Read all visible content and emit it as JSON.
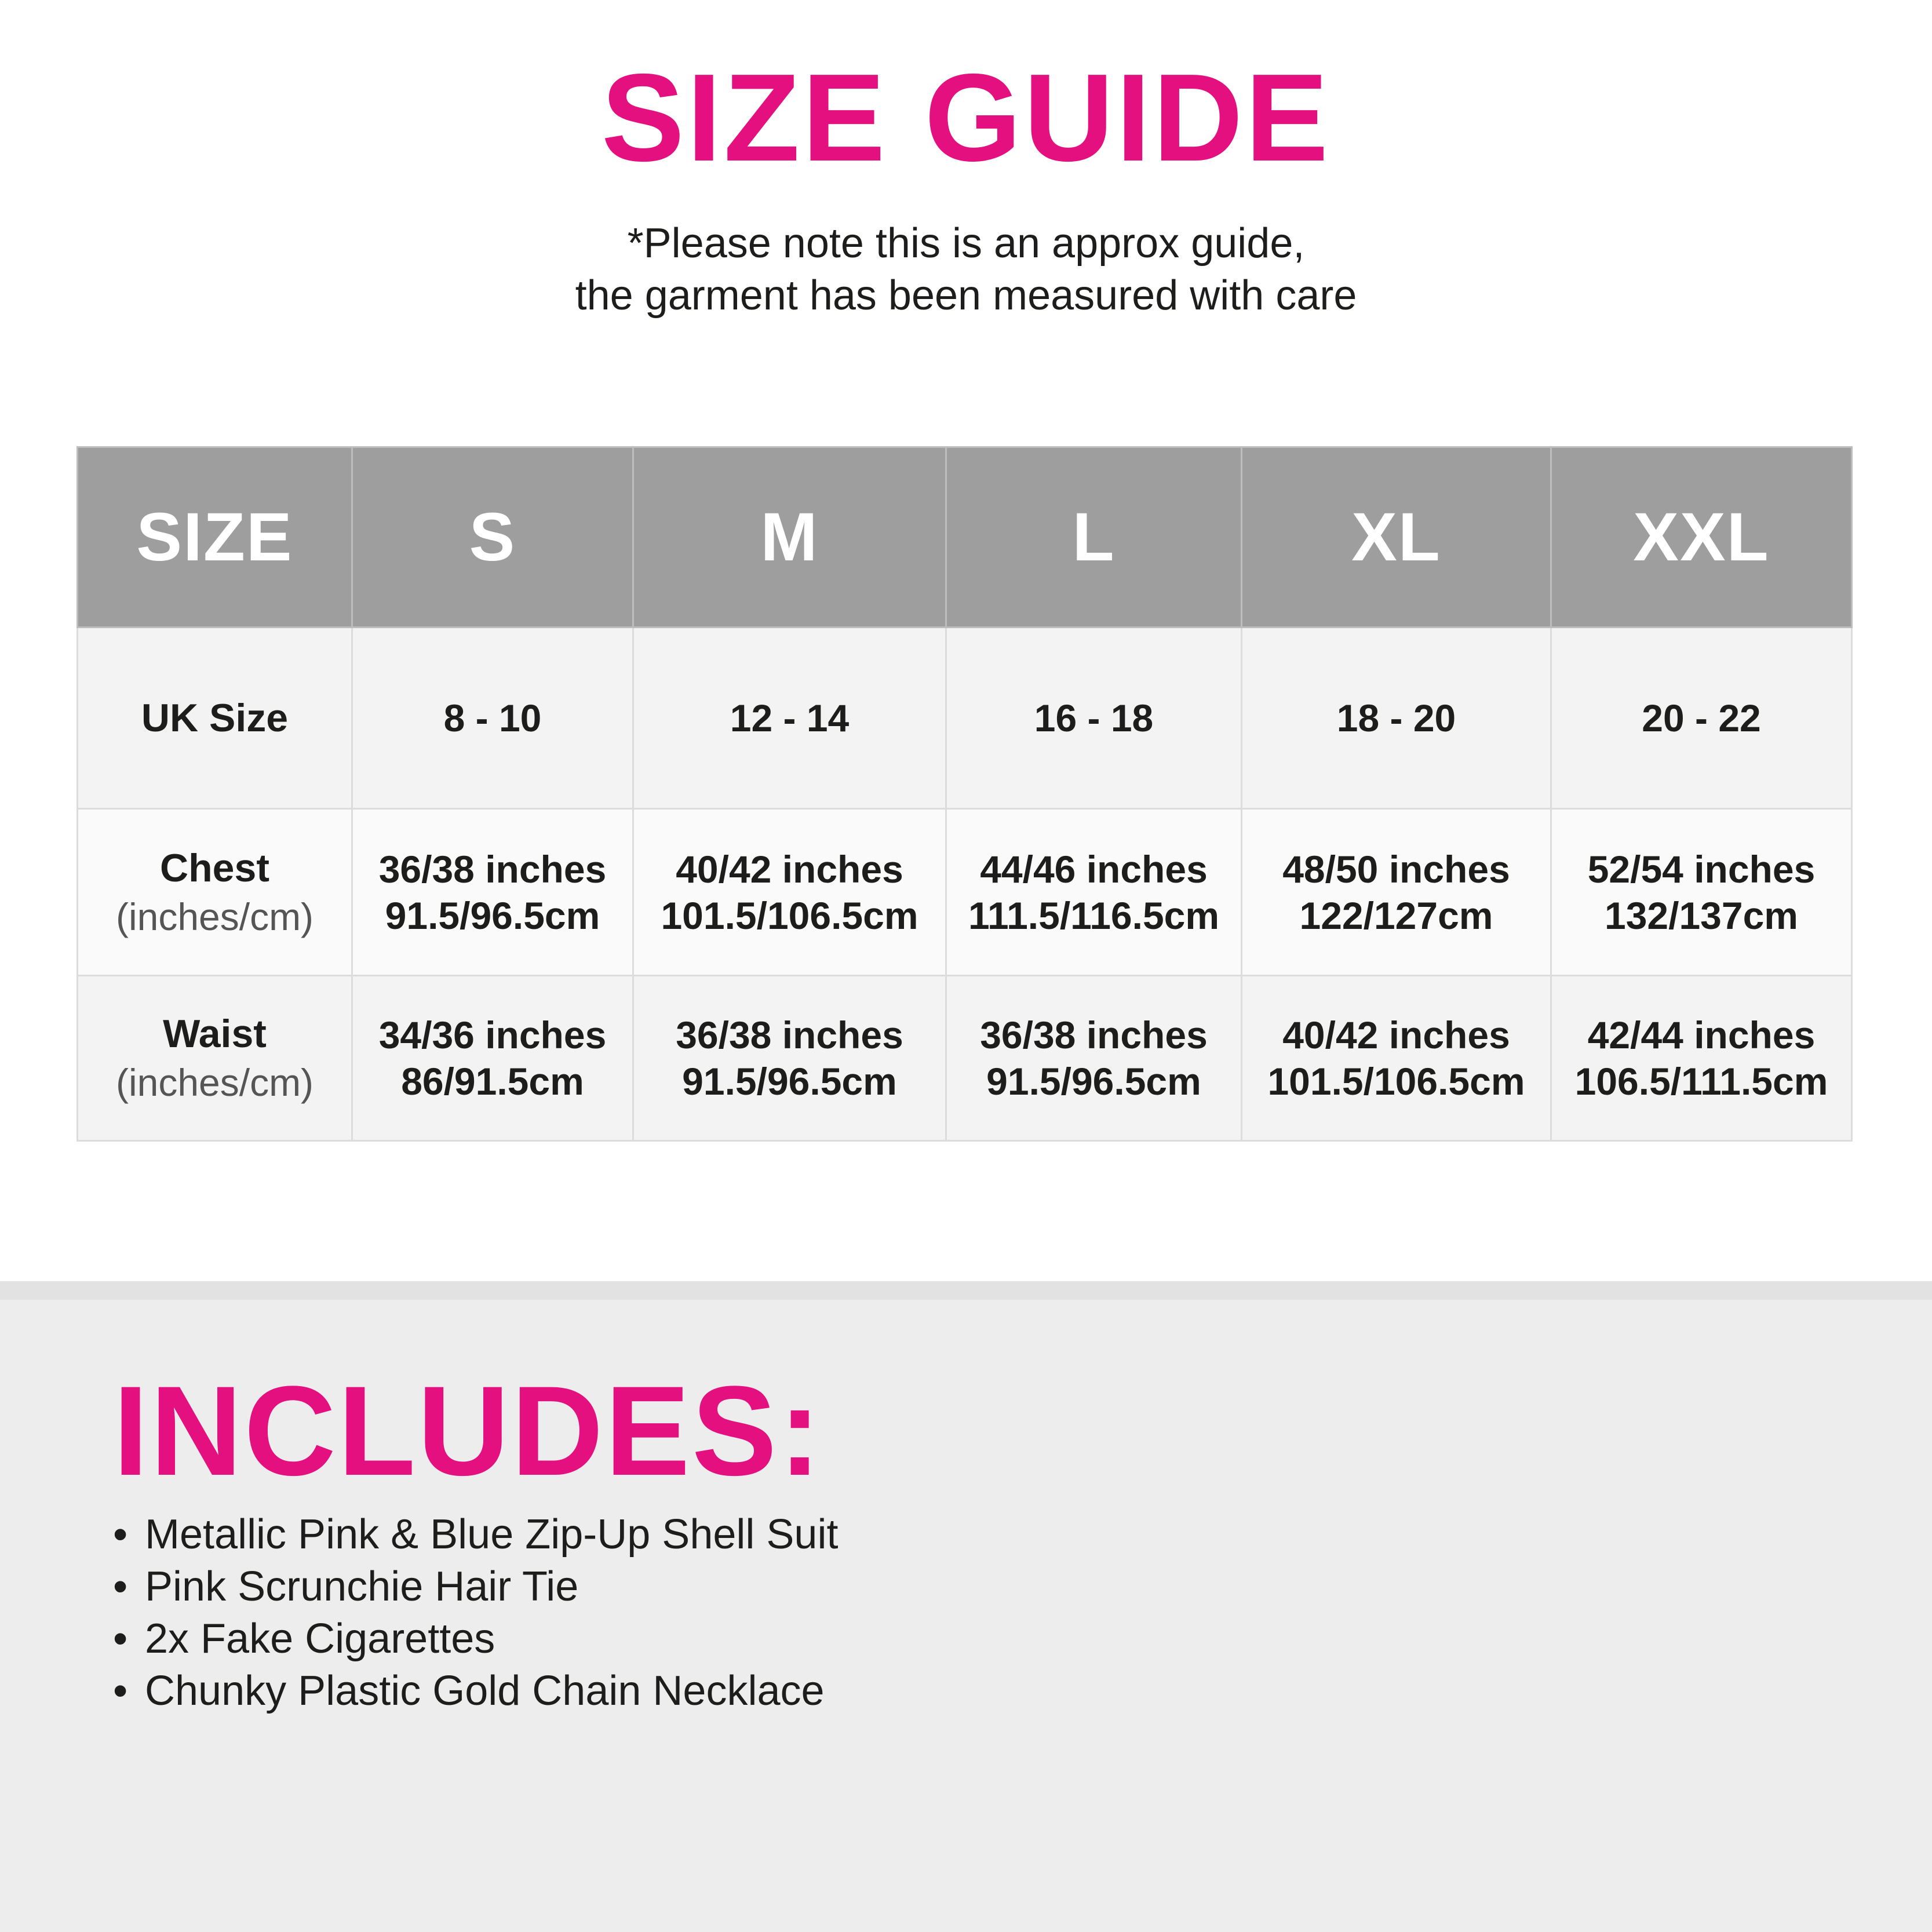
{
  "title": "SIZE GUIDE",
  "note": {
    "line1": "*Please note this is an approx guide,",
    "line2": "the garment has been measured with care"
  },
  "table": {
    "headers": [
      "SIZE",
      "S",
      "M",
      "L",
      "XL",
      "XXL"
    ],
    "rows": [
      {
        "label": "UK Size",
        "sublabel": "",
        "values": [
          [
            "8 - 10"
          ],
          [
            "12 - 14"
          ],
          [
            "16 - 18"
          ],
          [
            "18 - 20"
          ],
          [
            "20 - 22"
          ]
        ]
      },
      {
        "label": "Chest",
        "sublabel": "(inches/cm)",
        "values": [
          [
            "36/38 inches",
            "91.5/96.5cm"
          ],
          [
            "40/42 inches",
            "101.5/106.5cm"
          ],
          [
            "44/46 inches",
            "111.5/116.5cm"
          ],
          [
            "48/50 inches",
            "122/127cm"
          ],
          [
            "52/54 inches",
            "132/137cm"
          ]
        ]
      },
      {
        "label": "Waist",
        "sublabel": "(inches/cm)",
        "values": [
          [
            "34/36 inches",
            "86/91.5cm"
          ],
          [
            "36/38 inches",
            "91.5/96.5cm"
          ],
          [
            "36/38 inches",
            "91.5/96.5cm"
          ],
          [
            "40/42 inches",
            "101.5/106.5cm"
          ],
          [
            "42/44 inches",
            "106.5/111.5cm"
          ]
        ]
      }
    ]
  },
  "includes": {
    "title": "INCLUDES:",
    "bullet": "•",
    "items": [
      "Metallic Pink & Blue Zip-Up Shell Suit",
      "Pink Scrunchie Hair Tie",
      "2x Fake Cigarettes",
      "Chunky Plastic Gold Chain Necklace"
    ]
  },
  "colors": {
    "accent": "#e5107f",
    "header_bg": "#9e9e9e",
    "row_bg": "#f3f3f3",
    "section_bg": "#ededed"
  }
}
